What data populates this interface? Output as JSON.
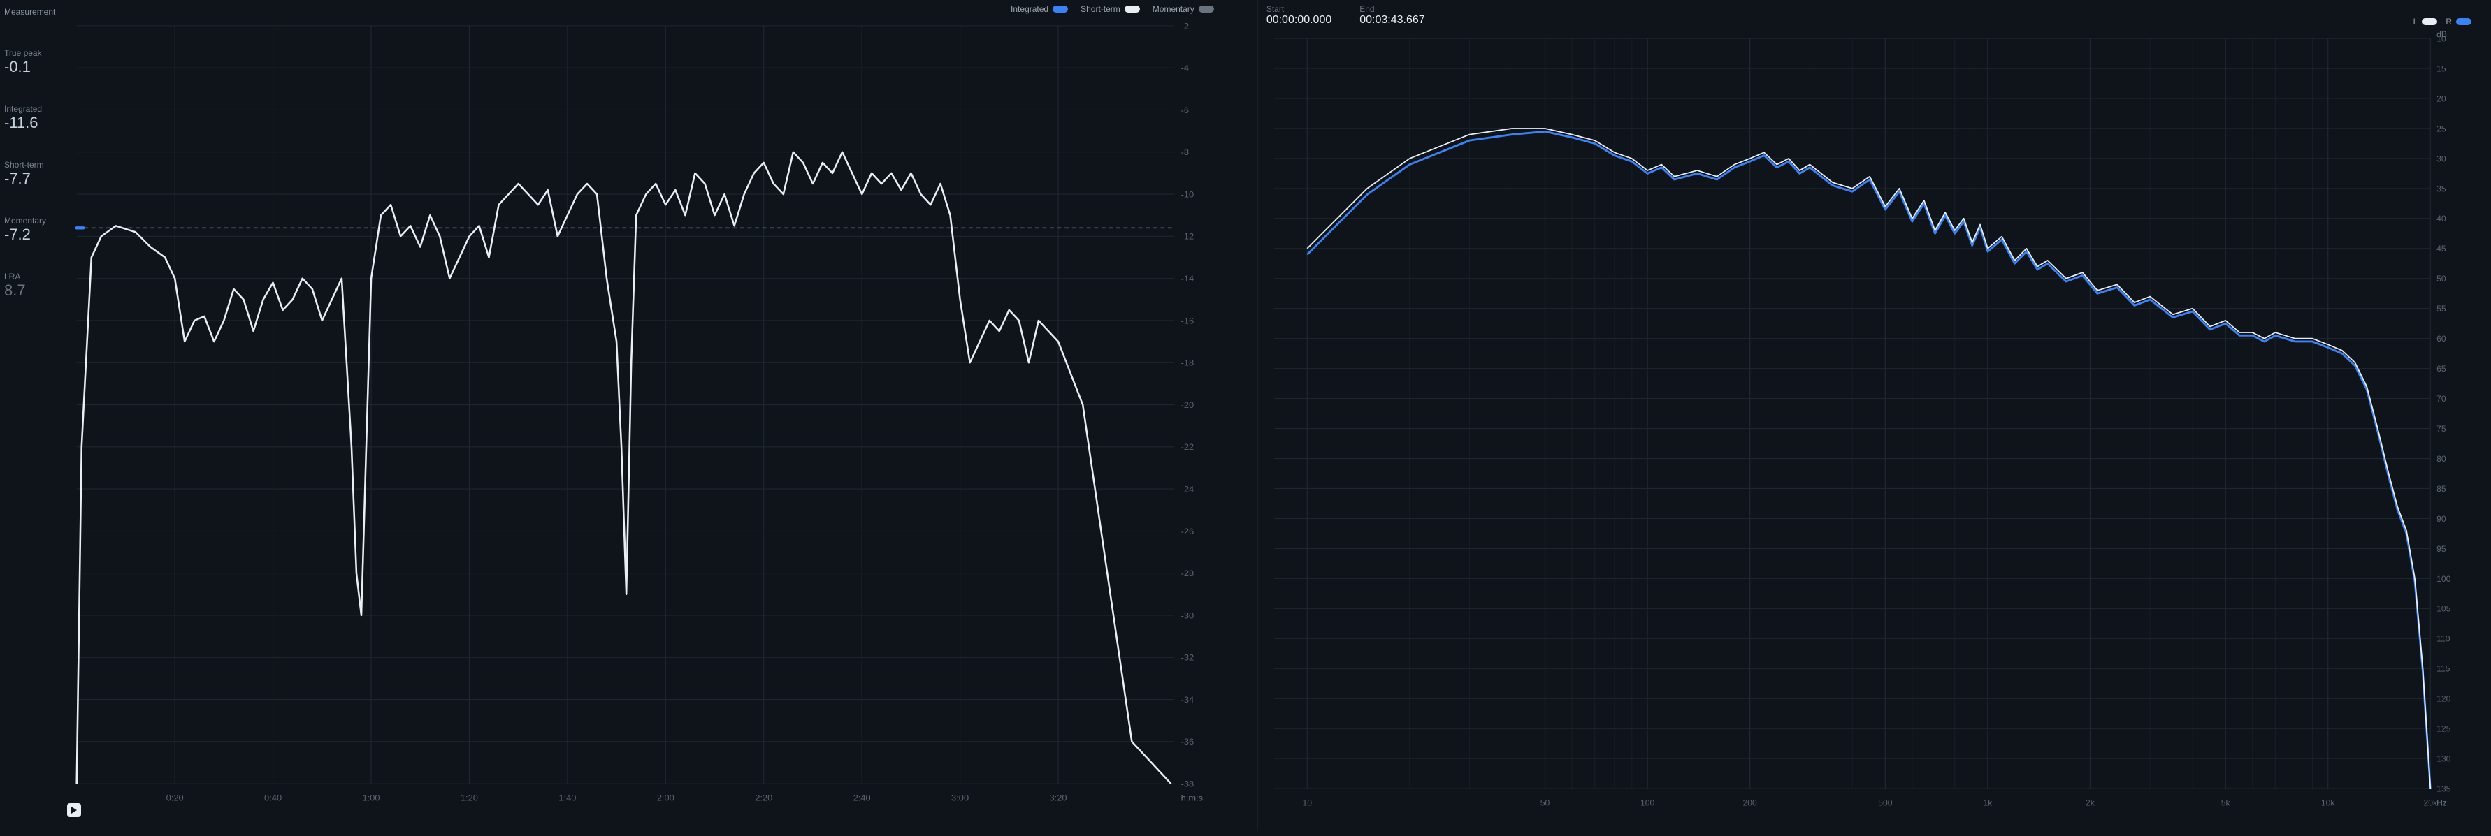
{
  "colors": {
    "bg": "#0e1419",
    "grid": "#1e2630",
    "grid_minor": "#161d26",
    "axis_text": "#5a6470",
    "line_white": "#e8eef4",
    "line_blue": "#3b82f6",
    "line_gray": "#6a7480",
    "dashed": "#5a6470"
  },
  "measurement": {
    "header": "Measurement",
    "items": [
      {
        "label": "True peak",
        "value": "-0.1"
      },
      {
        "label": "Integrated",
        "value": "-11.6"
      },
      {
        "label": "Short-term",
        "value": "-7.7"
      },
      {
        "label": "Momentary",
        "value": "-7.2"
      },
      {
        "label": "LRA",
        "value": "8.7",
        "dim": true
      }
    ]
  },
  "loudness_chart": {
    "legend": [
      {
        "label": "Integrated",
        "color": "#3b82f6"
      },
      {
        "label": "Short-term",
        "color": "#e8eef4"
      },
      {
        "label": "Momentary",
        "color": "#6a7480"
      }
    ],
    "y_min": -38,
    "y_max": -2,
    "y_step": 2,
    "y_unit": "",
    "x_min": 0,
    "x_max": 223.667,
    "x_ticks": [
      20,
      40,
      60,
      80,
      100,
      120,
      140,
      160,
      180,
      200
    ],
    "x_tick_labels": [
      "0:20",
      "0:40",
      "1:00",
      "1:20",
      "1:40",
      "2:00",
      "2:20",
      "2:40",
      "3:00",
      "3:20"
    ],
    "x_unit": "h:m:s",
    "target_line": -11.6,
    "integrated_end": -11.6,
    "short_term": [
      [
        0,
        -38
      ],
      [
        1,
        -22
      ],
      [
        3,
        -13
      ],
      [
        5,
        -12
      ],
      [
        8,
        -11.5
      ],
      [
        12,
        -11.8
      ],
      [
        15,
        -12.5
      ],
      [
        18,
        -13
      ],
      [
        20,
        -14
      ],
      [
        22,
        -17
      ],
      [
        24,
        -16
      ],
      [
        26,
        -15.8
      ],
      [
        28,
        -17
      ],
      [
        30,
        -16
      ],
      [
        32,
        -14.5
      ],
      [
        34,
        -15
      ],
      [
        36,
        -16.5
      ],
      [
        38,
        -15
      ],
      [
        40,
        -14.2
      ],
      [
        42,
        -15.5
      ],
      [
        44,
        -15
      ],
      [
        46,
        -14
      ],
      [
        48,
        -14.5
      ],
      [
        50,
        -16
      ],
      [
        52,
        -15
      ],
      [
        54,
        -14
      ],
      [
        56,
        -22
      ],
      [
        57,
        -28
      ],
      [
        58,
        -30
      ],
      [
        59,
        -22
      ],
      [
        60,
        -14
      ],
      [
        62,
        -11
      ],
      [
        64,
        -10.5
      ],
      [
        66,
        -12
      ],
      [
        68,
        -11.5
      ],
      [
        70,
        -12.5
      ],
      [
        72,
        -11
      ],
      [
        74,
        -12
      ],
      [
        76,
        -14
      ],
      [
        78,
        -13
      ],
      [
        80,
        -12
      ],
      [
        82,
        -11.5
      ],
      [
        84,
        -13
      ],
      [
        86,
        -10.5
      ],
      [
        88,
        -10
      ],
      [
        90,
        -9.5
      ],
      [
        92,
        -10
      ],
      [
        94,
        -10.5
      ],
      [
        96,
        -9.8
      ],
      [
        98,
        -12
      ],
      [
        100,
        -11
      ],
      [
        102,
        -10
      ],
      [
        104,
        -9.5
      ],
      [
        106,
        -10
      ],
      [
        108,
        -14
      ],
      [
        110,
        -17
      ],
      [
        111,
        -22
      ],
      [
        112,
        -29
      ],
      [
        113,
        -18
      ],
      [
        114,
        -11
      ],
      [
        116,
        -10
      ],
      [
        118,
        -9.5
      ],
      [
        120,
        -10.5
      ],
      [
        122,
        -9.8
      ],
      [
        124,
        -11
      ],
      [
        126,
        -9
      ],
      [
        128,
        -9.5
      ],
      [
        130,
        -11
      ],
      [
        132,
        -10
      ],
      [
        134,
        -11.5
      ],
      [
        136,
        -10
      ],
      [
        138,
        -9
      ],
      [
        140,
        -8.5
      ],
      [
        142,
        -9.5
      ],
      [
        144,
        -10
      ],
      [
        146,
        -8
      ],
      [
        148,
        -8.5
      ],
      [
        150,
        -9.5
      ],
      [
        152,
        -8.5
      ],
      [
        154,
        -9
      ],
      [
        156,
        -8
      ],
      [
        158,
        -9
      ],
      [
        160,
        -10
      ],
      [
        162,
        -9
      ],
      [
        164,
        -9.5
      ],
      [
        166,
        -9
      ],
      [
        168,
        -9.8
      ],
      [
        170,
        -9
      ],
      [
        172,
        -10
      ],
      [
        174,
        -10.5
      ],
      [
        176,
        -9.5
      ],
      [
        178,
        -11
      ],
      [
        180,
        -15
      ],
      [
        182,
        -18
      ],
      [
        184,
        -17
      ],
      [
        186,
        -16
      ],
      [
        188,
        -16.5
      ],
      [
        190,
        -15.5
      ],
      [
        192,
        -16
      ],
      [
        194,
        -18
      ],
      [
        196,
        -16
      ],
      [
        200,
        -17
      ],
      [
        205,
        -20
      ],
      [
        210,
        -28
      ],
      [
        215,
        -36
      ],
      [
        223,
        -38
      ]
    ]
  },
  "time": {
    "start_label": "Start",
    "start_value": "00:00:00.000",
    "end_label": "End",
    "end_value": "00:03:43.667"
  },
  "lr_legend": [
    {
      "label": "L",
      "color": "#e8eef4"
    },
    {
      "label": "R",
      "color": "#3b82f6"
    }
  ],
  "spectrum_chart": {
    "y_min": 135,
    "y_max": 10,
    "y_step": 5,
    "y_unit": "dB",
    "x_min_log": 0.903,
    "x_max_log": 4.301,
    "x_ticks": [
      10,
      50,
      100,
      200,
      500,
      1000,
      2000,
      5000,
      10000,
      20000
    ],
    "x_tick_labels": [
      "10",
      "50",
      "100",
      "200",
      "500",
      "1k",
      "2k",
      "5k",
      "10k",
      "20k"
    ],
    "minor_decades": [
      [
        10,
        100
      ],
      [
        100,
        1000
      ],
      [
        1000,
        10000
      ],
      [
        10000,
        20000
      ]
    ],
    "x_unit": "Hz",
    "L": [
      [
        10,
        45
      ],
      [
        15,
        35
      ],
      [
        20,
        30
      ],
      [
        30,
        26
      ],
      [
        40,
        25
      ],
      [
        50,
        25
      ],
      [
        60,
        26
      ],
      [
        70,
        27
      ],
      [
        80,
        29
      ],
      [
        90,
        30
      ],
      [
        100,
        32
      ],
      [
        110,
        31
      ],
      [
        120,
        33
      ],
      [
        140,
        32
      ],
      [
        160,
        33
      ],
      [
        180,
        31
      ],
      [
        200,
        30
      ],
      [
        220,
        29
      ],
      [
        240,
        31
      ],
      [
        260,
        30
      ],
      [
        280,
        32
      ],
      [
        300,
        31
      ],
      [
        350,
        34
      ],
      [
        400,
        35
      ],
      [
        450,
        33
      ],
      [
        500,
        38
      ],
      [
        550,
        35
      ],
      [
        600,
        40
      ],
      [
        650,
        37
      ],
      [
        700,
        42
      ],
      [
        750,
        39
      ],
      [
        800,
        42
      ],
      [
        850,
        40
      ],
      [
        900,
        44
      ],
      [
        950,
        41
      ],
      [
        1000,
        45
      ],
      [
        1100,
        43
      ],
      [
        1200,
        47
      ],
      [
        1300,
        45
      ],
      [
        1400,
        48
      ],
      [
        1500,
        47
      ],
      [
        1700,
        50
      ],
      [
        1900,
        49
      ],
      [
        2100,
        52
      ],
      [
        2400,
        51
      ],
      [
        2700,
        54
      ],
      [
        3000,
        53
      ],
      [
        3500,
        56
      ],
      [
        4000,
        55
      ],
      [
        4500,
        58
      ],
      [
        5000,
        57
      ],
      [
        5500,
        59
      ],
      [
        6000,
        59
      ],
      [
        6500,
        60
      ],
      [
        7000,
        59
      ],
      [
        8000,
        60
      ],
      [
        9000,
        60
      ],
      [
        10000,
        61
      ],
      [
        11000,
        62
      ],
      [
        12000,
        64
      ],
      [
        13000,
        68
      ],
      [
        14000,
        75
      ],
      [
        15000,
        82
      ],
      [
        16000,
        88
      ],
      [
        17000,
        92
      ],
      [
        18000,
        100
      ],
      [
        19000,
        115
      ],
      [
        20000,
        135
      ]
    ],
    "R": [
      [
        10,
        46
      ],
      [
        15,
        36
      ],
      [
        20,
        31
      ],
      [
        30,
        27
      ],
      [
        40,
        26
      ],
      [
        50,
        25.5
      ],
      [
        60,
        26.5
      ],
      [
        70,
        27.5
      ],
      [
        80,
        29.5
      ],
      [
        90,
        30.5
      ],
      [
        100,
        32.5
      ],
      [
        110,
        31.5
      ],
      [
        120,
        33.5
      ],
      [
        140,
        32.5
      ],
      [
        160,
        33.5
      ],
      [
        180,
        31.5
      ],
      [
        200,
        30.5
      ],
      [
        220,
        29.5
      ],
      [
        240,
        31.5
      ],
      [
        260,
        30.5
      ],
      [
        280,
        32.5
      ],
      [
        300,
        31.5
      ],
      [
        350,
        34.5
      ],
      [
        400,
        35.5
      ],
      [
        450,
        33.5
      ],
      [
        500,
        38.5
      ],
      [
        550,
        35.5
      ],
      [
        600,
        40.5
      ],
      [
        650,
        37.5
      ],
      [
        700,
        42.5
      ],
      [
        750,
        39.5
      ],
      [
        800,
        42.5
      ],
      [
        850,
        40.5
      ],
      [
        900,
        44.5
      ],
      [
        950,
        41.5
      ],
      [
        1000,
        45.5
      ],
      [
        1100,
        43.5
      ],
      [
        1200,
        47.5
      ],
      [
        1300,
        45.5
      ],
      [
        1400,
        48.5
      ],
      [
        1500,
        47.5
      ],
      [
        1700,
        50.5
      ],
      [
        1900,
        49.5
      ],
      [
        2100,
        52.5
      ],
      [
        2400,
        51.5
      ],
      [
        2700,
        54.5
      ],
      [
        3000,
        53.5
      ],
      [
        3500,
        56.5
      ],
      [
        4000,
        55.5
      ],
      [
        4500,
        58.5
      ],
      [
        5000,
        57.5
      ],
      [
        5500,
        59.5
      ],
      [
        6000,
        59.5
      ],
      [
        6500,
        60.5
      ],
      [
        7000,
        59.5
      ],
      [
        8000,
        60.5
      ],
      [
        9000,
        60.5
      ],
      [
        10000,
        61.5
      ],
      [
        11000,
        62.5
      ],
      [
        12000,
        64.5
      ],
      [
        13000,
        68.5
      ],
      [
        14000,
        75.5
      ],
      [
        15000,
        82.5
      ],
      [
        16000,
        88.5
      ],
      [
        17000,
        92.5
      ],
      [
        18000,
        100.5
      ],
      [
        19000,
        115.5
      ],
      [
        20000,
        135
      ]
    ]
  }
}
